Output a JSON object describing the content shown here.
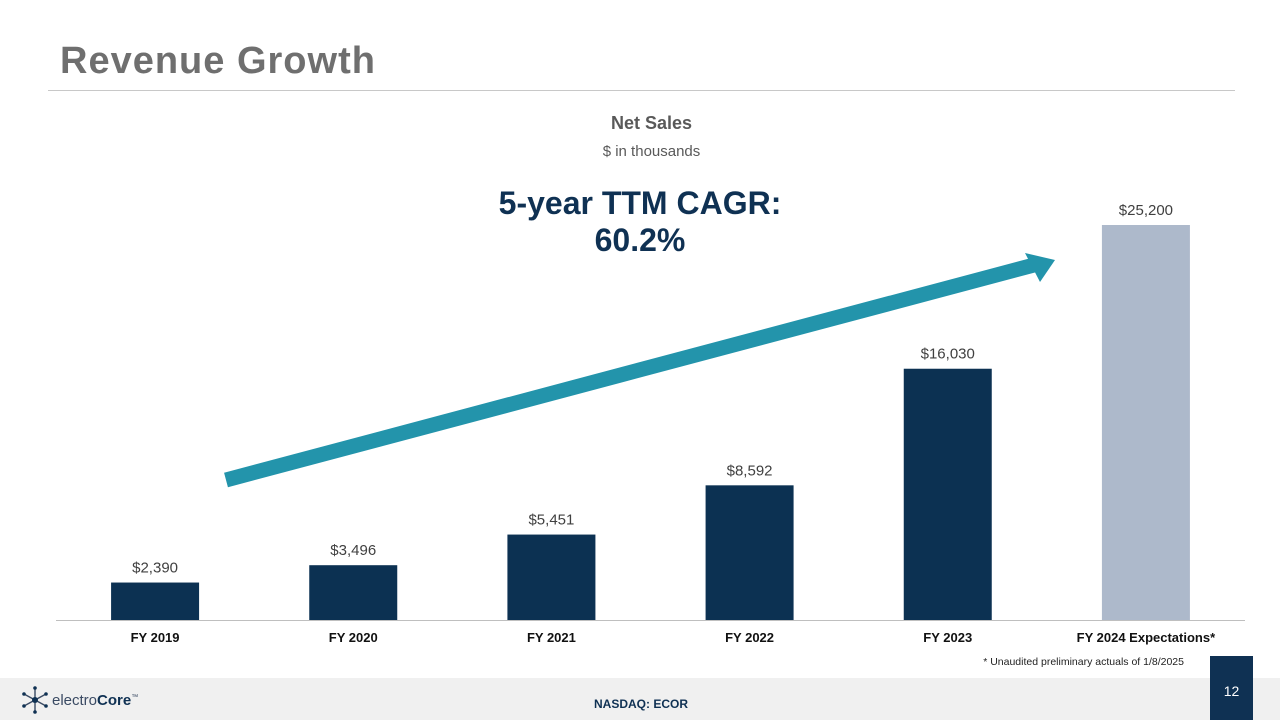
{
  "slide": {
    "title": "Revenue Growth",
    "page_number": "12",
    "ticker": "NASDAQ: ECOR",
    "footnote": "* Unaudited preliminary actuals of 1/8/2025",
    "logo": {
      "prefix": "electro",
      "emphasis": "Core",
      "tm": "™"
    }
  },
  "callout": {
    "line1": "5-year TTM CAGR:",
    "line2": "60.2%"
  },
  "colors": {
    "actual_bar": "#0c3152",
    "expected_bar": "#adb9cb",
    "arrow": "#2394ab",
    "title_gray": "#6f6f6f"
  },
  "chart_data": {
    "type": "bar",
    "title": "Net Sales",
    "subtitle": "$ in thousands",
    "categories": [
      "FY 2019",
      "FY 2020",
      "FY 2021",
      "FY 2022",
      "FY 2023",
      "FY 2024 Expectations*"
    ],
    "values": [
      2390,
      3496,
      5451,
      8592,
      16030,
      25200
    ],
    "data_labels": [
      "$2,390",
      "$3,496",
      "$5,451",
      "$8,592",
      "$16,030",
      "$25,200"
    ],
    "bar_kind": [
      "actual",
      "actual",
      "actual",
      "actual",
      "actual",
      "expected"
    ],
    "ylim": [
      0,
      28000
    ],
    "grid": false,
    "legend": "none",
    "annotation": "upward trend arrow"
  }
}
